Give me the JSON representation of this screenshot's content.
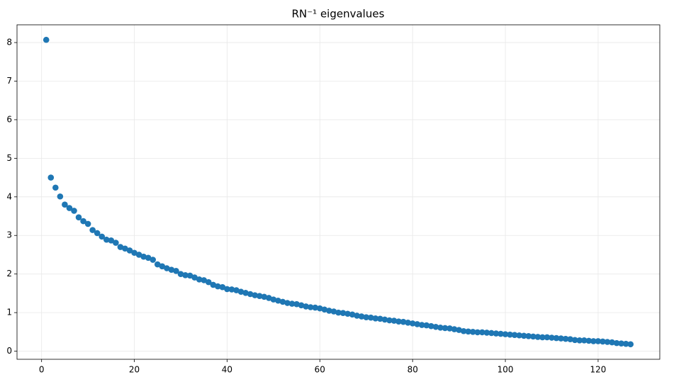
{
  "chart_data": {
    "type": "scatter",
    "title": "RN⁻¹ eigenvalues",
    "x": [
      1,
      2,
      3,
      4,
      5,
      6,
      7,
      8,
      9,
      10,
      11,
      12,
      13,
      14,
      15,
      16,
      17,
      18,
      19,
      20,
      21,
      22,
      23,
      24,
      25,
      26,
      27,
      28,
      29,
      30,
      31,
      32,
      33,
      34,
      35,
      36,
      37,
      38,
      39,
      40,
      41,
      42,
      43,
      44,
      45,
      46,
      47,
      48,
      49,
      50,
      51,
      52,
      53,
      54,
      55,
      56,
      57,
      58,
      59,
      60,
      61,
      62,
      63,
      64,
      65,
      66,
      67,
      68,
      69,
      70,
      71,
      72,
      73,
      74,
      75,
      76,
      77,
      78,
      79,
      80,
      81,
      82,
      83,
      84,
      85,
      86,
      87,
      88,
      89,
      90,
      91,
      92,
      93,
      94,
      95,
      96,
      97,
      98,
      99,
      100,
      101,
      102,
      103,
      104,
      105,
      106,
      107,
      108,
      109,
      110,
      111,
      112,
      113,
      114,
      115,
      116,
      117,
      118,
      119,
      120,
      121,
      122,
      123,
      124,
      125,
      126,
      127
    ],
    "values": [
      8.07,
      4.5,
      4.24,
      4.01,
      3.8,
      3.71,
      3.64,
      3.47,
      3.37,
      3.3,
      3.14,
      3.06,
      2.97,
      2.89,
      2.87,
      2.81,
      2.7,
      2.66,
      2.61,
      2.55,
      2.5,
      2.45,
      2.42,
      2.37,
      2.25,
      2.2,
      2.15,
      2.11,
      2.08,
      2.0,
      1.97,
      1.96,
      1.91,
      1.86,
      1.84,
      1.79,
      1.72,
      1.68,
      1.66,
      1.61,
      1.6,
      1.58,
      1.54,
      1.51,
      1.48,
      1.45,
      1.43,
      1.41,
      1.38,
      1.34,
      1.31,
      1.28,
      1.25,
      1.23,
      1.22,
      1.19,
      1.16,
      1.14,
      1.13,
      1.11,
      1.08,
      1.05,
      1.03,
      1.0,
      0.99,
      0.97,
      0.95,
      0.92,
      0.9,
      0.88,
      0.87,
      0.85,
      0.84,
      0.82,
      0.8,
      0.79,
      0.77,
      0.76,
      0.74,
      0.72,
      0.7,
      0.68,
      0.67,
      0.65,
      0.63,
      0.61,
      0.6,
      0.59,
      0.57,
      0.55,
      0.52,
      0.51,
      0.5,
      0.49,
      0.49,
      0.48,
      0.47,
      0.46,
      0.45,
      0.44,
      0.43,
      0.42,
      0.41,
      0.4,
      0.39,
      0.38,
      0.37,
      0.36,
      0.36,
      0.35,
      0.34,
      0.33,
      0.32,
      0.31,
      0.29,
      0.28,
      0.28,
      0.27,
      0.26,
      0.26,
      0.25,
      0.24,
      0.23,
      0.21,
      0.2,
      0.19,
      0.18
    ],
    "color": "#1f77b4",
    "xlim": [
      -5.3,
      133.3
    ],
    "xticks": [
      0,
      20,
      40,
      60,
      80,
      100,
      120
    ],
    "ylim": [
      -0.21,
      8.46
    ],
    "yticks": [
      0,
      1,
      2,
      3,
      4,
      5,
      6,
      7,
      8
    ],
    "grid": true
  }
}
